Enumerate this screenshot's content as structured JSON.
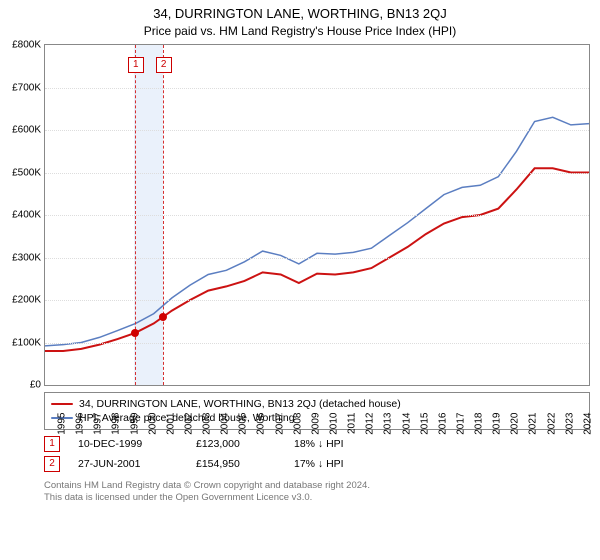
{
  "title": "34, DURRINGTON LANE, WORTHING, BN13 2QJ",
  "subtitle": "Price paid vs. HM Land Registry's House Price Index (HPI)",
  "chart": {
    "type": "line",
    "background_color": "#ffffff",
    "grid_color": "#dddddd",
    "border_color": "#888888",
    "title_fontsize": 13,
    "label_fontsize": 10,
    "y": {
      "min": 0,
      "max": 800000,
      "step": 100000,
      "prefix": "£",
      "suffix": "K",
      "divisor": 1000
    },
    "x": {
      "min": 1995,
      "max": 2025,
      "step": 1
    },
    "highlight_band": {
      "from": 1999.9,
      "to": 2001.5,
      "color": "#eaf1fb"
    },
    "sale_lines_color": "#d53030",
    "dot_color": "#d00000",
    "series": [
      {
        "key": "property",
        "label": "34, DURRINGTON LANE, WORTHING, BN13 2QJ (detached house)",
        "color": "#cc1212",
        "width": 2,
        "points": [
          [
            1995,
            80000
          ],
          [
            1996,
            80000
          ],
          [
            1997,
            85000
          ],
          [
            1998,
            95000
          ],
          [
            1999,
            108000
          ],
          [
            2000,
            123000
          ],
          [
            2001,
            145000
          ],
          [
            2002,
            175000
          ],
          [
            2003,
            200000
          ],
          [
            2004,
            222000
          ],
          [
            2005,
            232000
          ],
          [
            2006,
            245000
          ],
          [
            2007,
            265000
          ],
          [
            2008,
            260000
          ],
          [
            2009,
            240000
          ],
          [
            2010,
            262000
          ],
          [
            2011,
            260000
          ],
          [
            2012,
            265000
          ],
          [
            2013,
            275000
          ],
          [
            2014,
            300000
          ],
          [
            2015,
            325000
          ],
          [
            2016,
            355000
          ],
          [
            2017,
            380000
          ],
          [
            2018,
            395000
          ],
          [
            2019,
            400000
          ],
          [
            2020,
            415000
          ],
          [
            2021,
            460000
          ],
          [
            2022,
            510000
          ],
          [
            2023,
            510000
          ],
          [
            2024,
            500000
          ],
          [
            2025,
            500000
          ]
        ]
      },
      {
        "key": "hpi",
        "label": "HPI: Average price, detached house, Worthing",
        "color": "#5b7ec1",
        "width": 1.5,
        "points": [
          [
            1995,
            92000
          ],
          [
            1996,
            95000
          ],
          [
            1997,
            100000
          ],
          [
            1998,
            112000
          ],
          [
            1999,
            128000
          ],
          [
            2000,
            145000
          ],
          [
            2001,
            168000
          ],
          [
            2002,
            205000
          ],
          [
            2003,
            235000
          ],
          [
            2004,
            260000
          ],
          [
            2005,
            270000
          ],
          [
            2006,
            290000
          ],
          [
            2007,
            315000
          ],
          [
            2008,
            305000
          ],
          [
            2009,
            285000
          ],
          [
            2010,
            310000
          ],
          [
            2011,
            308000
          ],
          [
            2012,
            312000
          ],
          [
            2013,
            322000
          ],
          [
            2014,
            352000
          ],
          [
            2015,
            382000
          ],
          [
            2016,
            415000
          ],
          [
            2017,
            448000
          ],
          [
            2018,
            465000
          ],
          [
            2019,
            470000
          ],
          [
            2020,
            490000
          ],
          [
            2021,
            550000
          ],
          [
            2022,
            620000
          ],
          [
            2023,
            630000
          ],
          [
            2024,
            612000
          ],
          [
            2025,
            615000
          ]
        ]
      }
    ],
    "sales": [
      {
        "n": 1,
        "x": 1999.95,
        "date": "10-DEC-1999",
        "price": "£123,000",
        "pct": "18%",
        "arrow": "↓",
        "note": "HPI"
      },
      {
        "n": 2,
        "x": 2001.49,
        "date": "27-JUN-2001",
        "price": "£154,950",
        "pct": "17%",
        "arrow": "↓",
        "note": "HPI"
      }
    ]
  },
  "footer": {
    "l1": "Contains HM Land Registry data © Crown copyright and database right 2024.",
    "l2": "This data is licensed under the Open Government Licence v3.0."
  }
}
